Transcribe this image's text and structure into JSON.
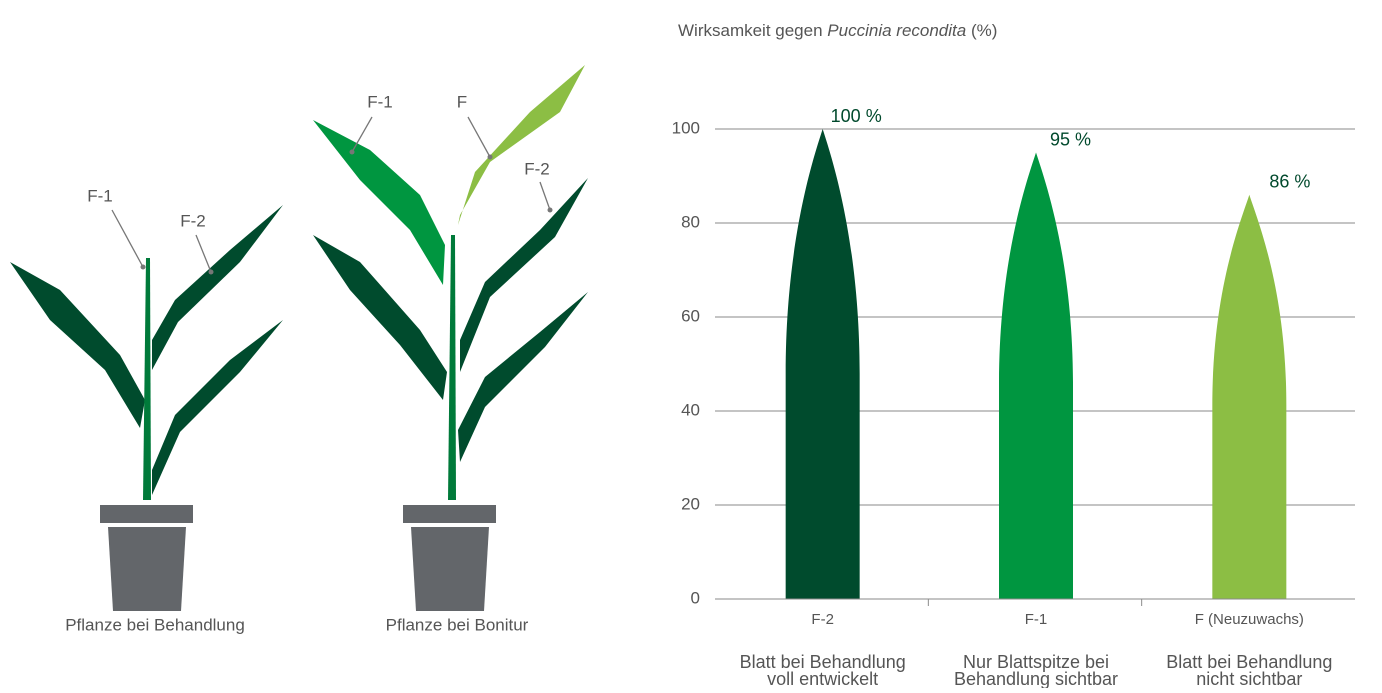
{
  "chart_data": {
    "type": "leaf-bar",
    "title_prefix": "Wirksamkeit gegen",
    "title_italic": "Puccinia recondita",
    "title_suffix": "(%)",
    "categories": [
      "F-2",
      "F-1",
      "F (Neuzuwachs)"
    ],
    "descriptions": [
      [
        "Blatt bei Behandlung",
        "voll entwickelt"
      ],
      [
        "Nur Blattspitze bei",
        "Behandlung sichtbar"
      ],
      [
        "Blatt bei Behandlung",
        "nicht sichtbar"
      ]
    ],
    "values": [
      100,
      95,
      86
    ],
    "value_labels": [
      "100 %",
      "95 %",
      "86 %"
    ],
    "colors": [
      "#004b2d",
      "#009640",
      "#8cbe44"
    ],
    "ylim": [
      0,
      100
    ],
    "yticks": [
      0,
      20,
      40,
      60,
      80,
      100
    ],
    "grid": true
  },
  "illustration": {
    "plant_1": {
      "caption": "Pflanze bei Behandlung",
      "labels": [
        "F-1",
        "F-2"
      ]
    },
    "plant_2": {
      "caption": "Pflanze bei Bonitur",
      "labels": [
        "F-1",
        "F",
        "F-2"
      ]
    }
  }
}
